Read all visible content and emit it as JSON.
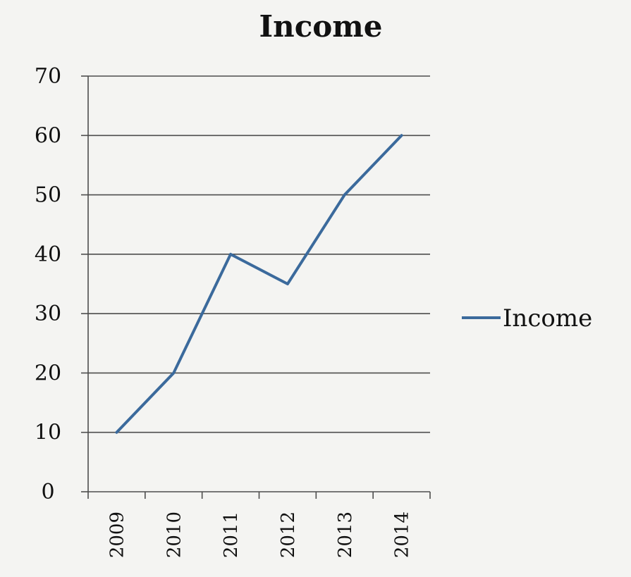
{
  "chart_data": {
    "type": "line",
    "title": "Income",
    "categories": [
      "2009",
      "2010",
      "2011",
      "2012",
      "2013",
      "2014"
    ],
    "series": [
      {
        "name": "Income",
        "values": [
          10,
          20,
          40,
          35,
          50,
          60
        ]
      }
    ],
    "ylim": [
      0,
      70
    ],
    "yticks": [
      0,
      10,
      20,
      30,
      40,
      50,
      60,
      70
    ],
    "ytick_labels": [
      "0",
      "10",
      "20",
      "30",
      "40",
      "50",
      "60",
      "70"
    ],
    "grid": true,
    "legend_position": "right",
    "colors": {
      "series": "#3b6a9c",
      "grid": "#4d4d4d",
      "text": "#111111"
    }
  }
}
